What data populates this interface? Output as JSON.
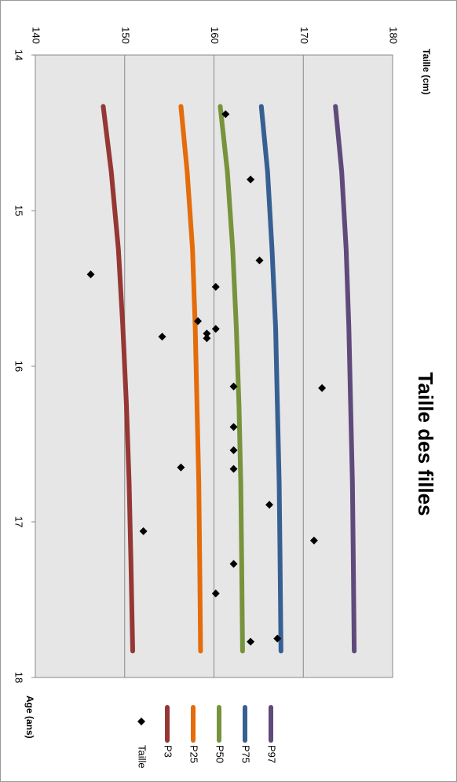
{
  "chart_data": {
    "type": "line",
    "title": "Taille des filles",
    "x_label": "Age (ans)",
    "y_label": "Taille  (cm)",
    "x": [
      14.33,
      14.75,
      15.25,
      15.75,
      16.25,
      16.75,
      17.25,
      17.83
    ],
    "xlim": [
      14,
      18
    ],
    "xticks": [
      14,
      15,
      16,
      17,
      18
    ],
    "ylim": [
      140,
      180
    ],
    "yticks": [
      140,
      150,
      160,
      170,
      180
    ],
    "grid": true,
    "series": [
      {
        "name": "P97",
        "color": "#604a7b",
        "values": [
          173.6,
          174.3,
          174.8,
          175.1,
          175.3,
          175.5,
          175.6,
          175.7
        ]
      },
      {
        "name": "P75",
        "color": "#376092",
        "values": [
          165.3,
          166.0,
          166.5,
          166.9,
          167.1,
          167.3,
          167.4,
          167.5
        ]
      },
      {
        "name": "P50",
        "color": "#77933c",
        "values": [
          160.7,
          161.5,
          162.1,
          162.5,
          162.8,
          163.0,
          163.1,
          163.2
        ]
      },
      {
        "name": "P25",
        "color": "#e46c0a",
        "values": [
          156.3,
          157.0,
          157.6,
          157.9,
          158.1,
          158.3,
          158.4,
          158.5
        ]
      },
      {
        "name": "P3",
        "color": "#953735",
        "values": [
          147.6,
          148.5,
          149.3,
          149.8,
          150.2,
          150.5,
          150.7,
          150.9
        ]
      },
      {
        "name": "Taille",
        "type": "scatter",
        "color": "#000000",
        "x": [
          14.38,
          14.8,
          15.32,
          15.41,
          15.49,
          15.71,
          15.76,
          15.79,
          15.82,
          15.81,
          16.13,
          16.14,
          16.39,
          16.54,
          16.65,
          16.66,
          16.89,
          17.06,
          17.12,
          17.27,
          17.46,
          17.75,
          17.77
        ],
        "values": [
          161.3,
          164.1,
          165.1,
          146.2,
          160.2,
          158.2,
          160.2,
          159.2,
          159.2,
          154.2,
          162.2,
          172.1,
          162.2,
          162.2,
          156.3,
          162.2,
          166.2,
          152.1,
          171.2,
          162.2,
          160.2,
          167.1,
          164.1
        ]
      }
    ]
  }
}
